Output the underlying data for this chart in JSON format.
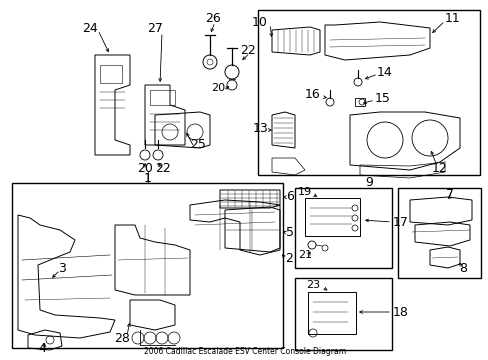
{
  "title": "2006 Cadillac Escalade ESV Center Console Diagram",
  "bg_color": "#ffffff",
  "fig_width": 4.89,
  "fig_height": 3.6,
  "dpi": 100,
  "line_color": "#000000",
  "text_color": "#000000",
  "font_size": 7.0
}
